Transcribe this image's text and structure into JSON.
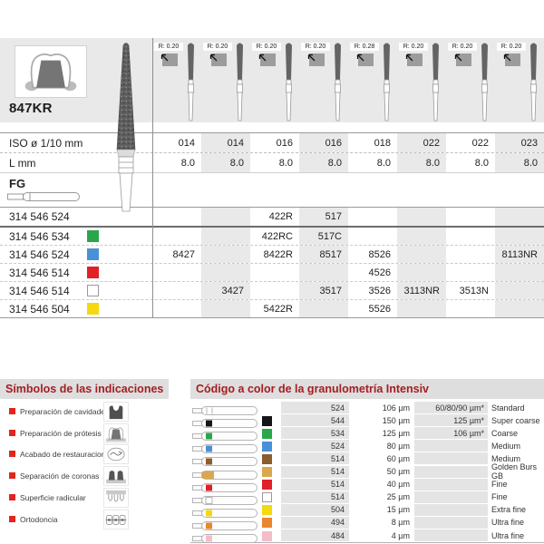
{
  "product": {
    "code": "847KR"
  },
  "labels": {
    "iso": "ISO ø 1/10 mm",
    "l": "L mm",
    "fg": "FG"
  },
  "columns": [
    {
      "radius": "R: 0.20",
      "iso": "014",
      "length": "8.0"
    },
    {
      "radius": "R: 0.20",
      "iso": "014",
      "length": "8.0"
    },
    {
      "radius": "R: 0.20",
      "iso": "016",
      "length": "8.0"
    },
    {
      "radius": "R: 0.20",
      "iso": "016",
      "length": "8.0"
    },
    {
      "radius": "R: 0.28",
      "iso": "018",
      "length": "8.0"
    },
    {
      "radius": "R: 0.20",
      "iso": "022",
      "length": "8.0"
    },
    {
      "radius": "R: 0.20",
      "iso": "022",
      "length": "8.0"
    },
    {
      "radius": "R: 0.20",
      "iso": "023",
      "length": "8.0"
    }
  ],
  "variants": [
    {
      "part": "314 546 524",
      "color": "",
      "values": [
        "",
        "",
        "422R",
        "517",
        "",
        "",
        "",
        ""
      ]
    },
    {
      "part": "314 546 534",
      "color": "#2aa64a",
      "values": [
        "",
        "",
        "422RC",
        "517C",
        "",
        "",
        "",
        ""
      ]
    },
    {
      "part": "314 546 524",
      "color": "#4a90d9",
      "values": [
        "8427",
        "",
        "8422R",
        "8517",
        "8526",
        "",
        "",
        "8113NR"
      ]
    },
    {
      "part": "314 546 514",
      "color": "#e02128",
      "values": [
        "",
        "",
        "",
        "",
        "4526",
        "",
        "",
        ""
      ]
    },
    {
      "part": "314 546 514",
      "color": "#ffffff",
      "values": [
        "",
        "3427",
        "",
        "3517",
        "3526",
        "3113NR",
        "3513N",
        ""
      ]
    },
    {
      "part": "314 546 504",
      "color": "#f6d80e",
      "values": [
        "",
        "",
        "5422R",
        "",
        "5526",
        "",
        "",
        ""
      ]
    }
  ],
  "symbols": {
    "title": "Símbolos de las indicaciones",
    "items": [
      {
        "label": "Preparación de cavidades",
        "icon": "cavity-prep-icon"
      },
      {
        "label": "Preparación de prótesis",
        "icon": "prosthesis-prep-icon"
      },
      {
        "label": "Acabado de restauraciones",
        "icon": "restoration-finishing-icon"
      },
      {
        "label": "Separación de coronas",
        "icon": "crown-separation-icon"
      },
      {
        "label": "Superficie radicular",
        "icon": "root-surface-icon"
      },
      {
        "label": "Ortodoncia",
        "icon": "orthodontics-icon"
      }
    ]
  },
  "granulometry": {
    "title": "Código a color de la granulometría Intensiv",
    "rows": [
      {
        "code": "524",
        "grain": "106 µm",
        "note": "60/80/90 µm*",
        "name": "Standard",
        "color": ""
      },
      {
        "code": "544",
        "grain": "150 µm",
        "note": "125 µm*",
        "name": "Super coarse",
        "color": "#151515"
      },
      {
        "code": "534",
        "grain": "125 µm",
        "note": "106 µm*",
        "name": "Coarse",
        "color": "#2aa64a"
      },
      {
        "code": "524",
        "grain": "80 µm",
        "note": "",
        "name": "Medium",
        "color": "#4a90d9"
      },
      {
        "code": "514",
        "grain": "60 µm",
        "note": "",
        "name": "Medium",
        "color": "#8b5e2e"
      },
      {
        "code": "514",
        "grain": "50 µm",
        "note": "",
        "name": "Golden Burs GB",
        "color": "#d9a84e"
      },
      {
        "code": "514",
        "grain": "40 µm",
        "note": "",
        "name": "Fine",
        "color": "#e02128"
      },
      {
        "code": "514",
        "grain": "25 µm",
        "note": "",
        "name": "Fine",
        "color": "#ffffff"
      },
      {
        "code": "504",
        "grain": "15 µm",
        "note": "",
        "name": "Extra fine",
        "color": "#f6d80e"
      },
      {
        "code": "494",
        "grain": "8 µm",
        "note": "",
        "name": "Ultra fine",
        "color": "#e8872e"
      },
      {
        "code": "484",
        "grain": "4 µm",
        "note": "",
        "name": "Ultra fine",
        "color": "#f4bcc8"
      }
    ]
  }
}
